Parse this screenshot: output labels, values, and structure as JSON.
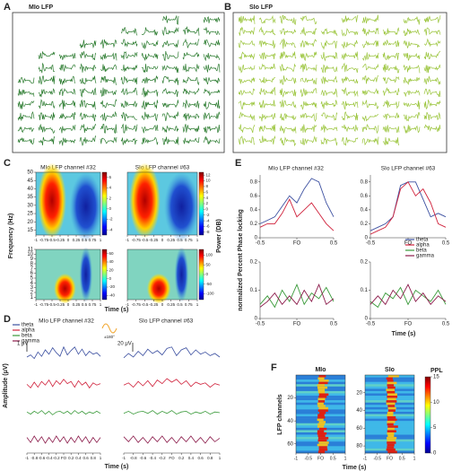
{
  "panels": {
    "A": {
      "label": "A",
      "title": "MIo LFP",
      "color": "#2e7d32"
    },
    "B": {
      "label": "B",
      "title": "SIo LFP",
      "color": "#9bc53d"
    },
    "C": {
      "label": "C",
      "titles": [
        "MIo LFP channel #32",
        "SIo LFP channel #63"
      ],
      "ylabel": "Frequency (Hz)",
      "xlabel": "Time (s)",
      "colorbar_label": "Power (DB)",
      "xlim": [
        -1,
        1
      ],
      "xticks": [
        -1,
        -0.75,
        -0.5,
        -0.25,
        0,
        0.25,
        0.5,
        0.75,
        1
      ],
      "ylim_top": [
        12,
        50
      ],
      "yticks_top": [
        50,
        45,
        40,
        35,
        30,
        25,
        20,
        15
      ],
      "ylim_bottom": [
        0.5,
        11
      ],
      "yticks_bottom": [
        11,
        10,
        9,
        8,
        7,
        6,
        5,
        4,
        3,
        2,
        1
      ],
      "colorbars": [
        {
          "lim": [
            -5,
            7
          ],
          "ticks": [
            6,
            4,
            2,
            0,
            -2,
            -4
          ]
        },
        {
          "lim": [
            -50,
            70
          ],
          "ticks": [
            60,
            40,
            20,
            0,
            -20,
            -40
          ]
        },
        {
          "lim": [
            -9,
            13
          ],
          "ticks": [
            12,
            10,
            8,
            6,
            4,
            2,
            0,
            -2,
            -4,
            -6,
            -8
          ]
        },
        {
          "lim": [
            -130,
            130
          ],
          "ticks": [
            100,
            50,
            0,
            -50,
            -100
          ]
        }
      ]
    },
    "D": {
      "label": "D",
      "titles": [
        "MIo LFP channel #32",
        "SIo LFP channel #63"
      ],
      "ylabel": "Amplitude (μV)",
      "xlabel": "Time (s)",
      "scalebars": [
        "1 μV",
        "20 μV"
      ],
      "phase_label": "±180°",
      "xlim": [
        -1,
        1
      ],
      "xticks": [
        -1,
        -0.8,
        -0.6,
        -0.4,
        -0.2,
        {
          "value": 0,
          "label": "FO"
        },
        0.2,
        0.4,
        0.6,
        0.8,
        1
      ],
      "ylim": [
        -1,
        2
      ],
      "x": [
        -1,
        -0.9,
        -0.8,
        -0.7,
        -0.6,
        -0.5,
        -0.4,
        -0.3,
        -0.2,
        -0.1,
        0,
        0.1,
        0.2,
        0.3,
        0.4,
        0.5,
        0.6,
        0.7,
        0.8,
        0.9,
        1
      ],
      "channels": [
        {
          "series": [
            {
              "name": "theta",
              "color": "#3b4fa0",
              "values": [
                0.5,
                0.8,
                0.3,
                1.2,
                0.6,
                1.5,
                0.9,
                1.8,
                1.1,
                0.6,
                1.9,
                0.8,
                1.4,
                1.9,
                0.9,
                1.6,
                0.7,
                1.3,
                0.9,
                1.1,
                0.6
              ]
            },
            {
              "name": "alpha",
              "color": "#d0213b",
              "values": [
                0.2,
                -0.3,
                0.5,
                -0.2,
                0.6,
                0.1,
                0.8,
                -0.1,
                0.7,
                0.2,
                0.9,
                0.3,
                0.6,
                -0.2,
                0.7,
                0.1,
                0.5,
                -0.3,
                0.4,
                0.1,
                0.3
              ]
            },
            {
              "name": "beta",
              "color": "#3a9a3a",
              "values": [
                0.1,
                -0.2,
                0.2,
                -0.1,
                0.3,
                -0.2,
                0.2,
                -0.3,
                0.1,
                0.2,
                -0.1,
                0.2,
                -0.2,
                0.3,
                -0.1,
                0.2,
                -0.2,
                0.1,
                -0.1,
                0.2,
                -0.1
              ]
            },
            {
              "name": "gamma",
              "color": "#8b1a4a",
              "values": [
                0.3,
                -0.4,
                0.5,
                -0.3,
                0.4,
                -0.5,
                0.3,
                -0.4,
                0.5,
                -0.3,
                0.4,
                -0.5,
                0.3,
                -0.4,
                0.5,
                -0.3,
                0.4,
                -0.5,
                0.3,
                -0.4,
                0.3
              ]
            }
          ]
        },
        {
          "series": [
            {
              "color": "#3b4fa0",
              "values": [
                0.4,
                1,
                0.5,
                1.3,
                0.7,
                1.6,
                1,
                1.4,
                0.8,
                1.7,
                1.9,
                0.7,
                1.5,
                1.8,
                0.8,
                1.5,
                0.9,
                1.2,
                0.7,
                1,
                0.5
              ]
            },
            {
              "color": "#d0213b",
              "values": [
                0.1,
                0.4,
                -0.2,
                0.6,
                0,
                0.7,
                -0.1,
                0.8,
                0.3,
                1,
                0.5,
                0.9,
                0.2,
                0.7,
                -0.1,
                0.5,
                0.2,
                0.4,
                -0.2,
                0.3,
                0.1
              ]
            },
            {
              "color": "#3a9a3a",
              "values": [
                -0.1,
                0.2,
                -0.2,
                0.1,
                0.2,
                -0.1,
                0.3,
                -0.2,
                0.2,
                -0.1,
                0.3,
                -0.2,
                0.1,
                0.2,
                -0.2,
                0.1,
                -0.1,
                0.2,
                -0.2,
                0.1,
                0
              ]
            },
            {
              "color": "#8b1a4a",
              "values": [
                0.4,
                -0.3,
                0.5,
                -0.4,
                0.3,
                -0.5,
                0.4,
                -0.3,
                0.5,
                -0.4,
                0.3,
                -0.5,
                0.4,
                -0.3,
                0.5,
                -0.4,
                0.3,
                -0.5,
                0.4,
                -0.3,
                0.2
              ]
            }
          ]
        }
      ]
    },
    "E": {
      "label": "E",
      "titles": [
        "MIo LFP channel #32",
        "SIo LFP channel #63"
      ],
      "ylabel": "normalized Percent Phase locking",
      "xlabel": "Time (s)",
      "xlim": [
        -0.5,
        0.5
      ],
      "xticks": [
        -0.5,
        {
          "value": 0,
          "label": "FO"
        },
        0.5
      ],
      "top": {
        "ylim": [
          0,
          0.9
        ],
        "yticks": [
          0,
          0.2,
          0.4,
          0.6,
          0.8
        ]
      },
      "bottom": {
        "ylim": [
          0,
          0.2
        ],
        "yticks": [
          0,
          0.1,
          0.2
        ]
      },
      "x": [
        -0.5,
        -0.4,
        -0.3,
        -0.2,
        -0.1,
        0,
        0.1,
        0.2,
        0.3,
        0.4,
        0.5
      ],
      "legend": [
        {
          "name": "theta",
          "color": "#3b4fa0"
        },
        {
          "name": "alpha",
          "color": "#d0213b"
        },
        {
          "name": "beta",
          "color": "#3a9a3a"
        },
        {
          "name": "gamma",
          "color": "#8b1a4a"
        }
      ],
      "plots": [
        {
          "series": [
            {
              "color": "#3b4fa0",
              "values": [
                0.2,
                0.25,
                0.3,
                0.45,
                0.6,
                0.5,
                0.7,
                0.85,
                0.8,
                0.5,
                0.3
              ]
            },
            {
              "color": "#d0213b",
              "values": [
                0.15,
                0.2,
                0.2,
                0.35,
                0.55,
                0.3,
                0.4,
                0.5,
                0.35,
                0.2,
                0.1
              ]
            }
          ]
        },
        {
          "series": [
            {
              "color": "#3b4fa0",
              "values": [
                0.1,
                0.15,
                0.2,
                0.3,
                0.75,
                0.8,
                0.8,
                0.55,
                0.3,
                0.35,
                0.3
              ]
            },
            {
              "color": "#d0213b",
              "values": [
                0.05,
                0.1,
                0.15,
                0.3,
                0.7,
                0.8,
                0.6,
                0.7,
                0.5,
                0.2,
                0.15
              ]
            }
          ]
        },
        {
          "series": [
            {
              "color": "#3a9a3a",
              "values": [
                0.05,
                0.08,
                0.04,
                0.1,
                0.06,
                0.12,
                0.05,
                0.09,
                0.07,
                0.11,
                0.06
              ]
            },
            {
              "color": "#8b1a4a",
              "values": [
                0.04,
                0.06,
                0.09,
                0.05,
                0.08,
                0.05,
                0.1,
                0.06,
                0.12,
                0.05,
                0.07
              ]
            }
          ]
        },
        {
          "series": [
            {
              "color": "#3a9a3a",
              "values": [
                0.06,
                0.04,
                0.09,
                0.07,
                0.11,
                0.05,
                0.1,
                0.08,
                0.06,
                0.1,
                0.05
              ]
            },
            {
              "color": "#8b1a4a",
              "values": [
                0.05,
                0.08,
                0.05,
                0.1,
                0.07,
                0.12,
                0.06,
                0.09,
                0.05,
                0.08,
                0.06
              ]
            }
          ]
        }
      ]
    },
    "F": {
      "label": "F",
      "titles": [
        "MIo",
        "SIo"
      ],
      "ylabel": "LFP channels",
      "xlabel": "Time (s)",
      "colorbar_label": "PPL",
      "xlim": [
        -1,
        1
      ],
      "xticks": [
        -1,
        -0.5,
        {
          "value": 0,
          "label": "FO"
        },
        0.5,
        1
      ],
      "ylims": [
        [
          0,
          68
        ],
        [
          0,
          88
        ]
      ],
      "yticks": [
        [
          20,
          40,
          60
        ],
        [
          20,
          40,
          60,
          80
        ]
      ],
      "clim": [
        0,
        15
      ],
      "cticks": [
        15,
        10,
        5,
        0
      ]
    }
  }
}
